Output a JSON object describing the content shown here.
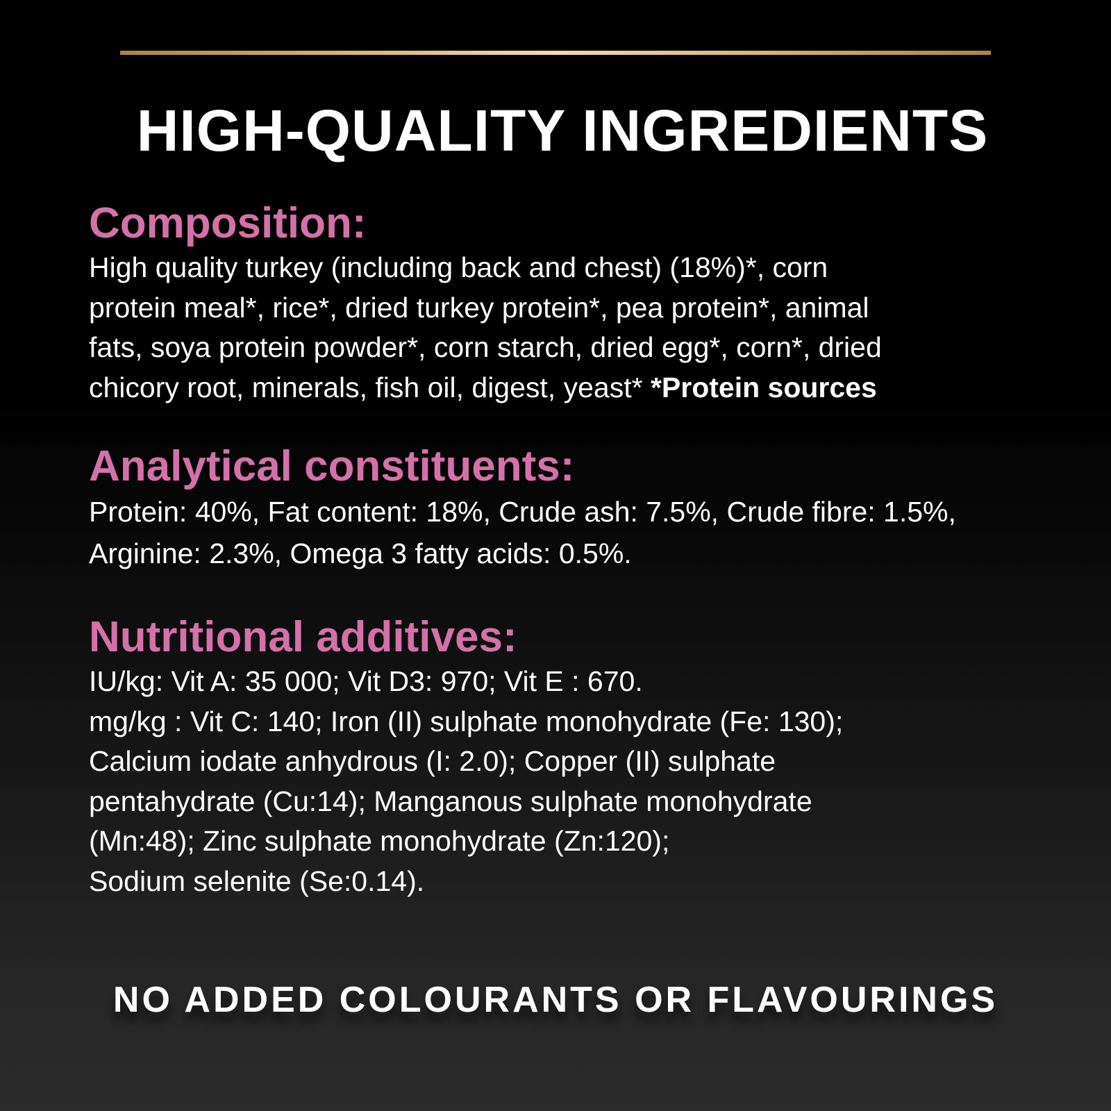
{
  "title": "HIGH-QUALITY INGREDIENTS",
  "colors": {
    "accent_pink": "#d371a8",
    "gold_rule": "#d9bb80",
    "background": "#000000",
    "text": "#ffffff"
  },
  "composition": {
    "heading": "Composition:",
    "lines": [
      "High quality turkey (including back and chest) (18%)*, corn",
      "protein meal*, rice*, dried turkey protein*, pea protein*, animal",
      "fats, soya protein powder*, corn starch, dried egg*, corn*, dried",
      "chicory root, minerals, fish oil, digest, yeast* "
    ],
    "footnote": "*Protein sources"
  },
  "analytical": {
    "heading": "Analytical constituents:",
    "lines": [
      "Protein: 40%, Fat content: 18%, Crude ash: 7.5%, Crude fibre: 1.5%,",
      "Arginine: 2.3%, Omega 3 fatty acids: 0.5%."
    ]
  },
  "nutritional": {
    "heading": "Nutritional additives:",
    "lines": [
      "IU/kg: Vit A: 35 000; Vit D3: 970; Vit E : 670.",
      "mg/kg : Vit C: 140; Iron (II) sulphate monohydrate (Fe: 130);",
      "Calcium iodate anhydrous (I: 2.0); Copper (II) sulphate",
      "pentahydrate (Cu:14); Manganous sulphate monohydrate",
      "(Mn:48); Zinc sulphate monohydrate (Zn:120);",
      "Sodium selenite (Se:0.14)."
    ]
  },
  "footer": "NO ADDED COLOURANTS OR FLAVOURINGS"
}
